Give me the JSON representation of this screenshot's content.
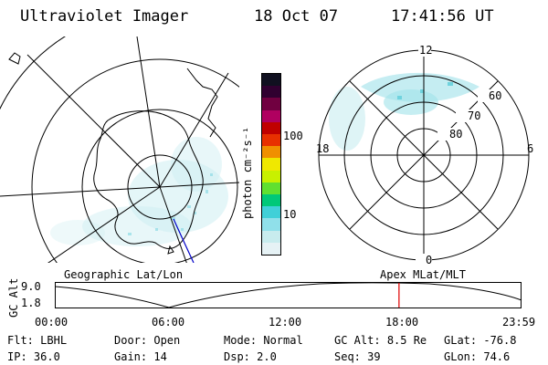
{
  "header": {
    "instrument": "Ultraviolet Imager",
    "date": "18 Oct 07",
    "time": "17:41:56 UT"
  },
  "colorbar": {
    "unit_label": "photon cm⁻²s⁻¹",
    "ticks": [
      "100",
      "10"
    ],
    "colors": [
      "#e6f2f5",
      "#c8ecee",
      "#90e0ea",
      "#40d0d8",
      "#00c878",
      "#60e030",
      "#c8f000",
      "#f0e800",
      "#f09000",
      "#e83000",
      "#c00000",
      "#b00060",
      "#700040",
      "#300030",
      "#101020"
    ]
  },
  "geo_panel": {
    "caption": "Geographic Lat/Lon"
  },
  "mag_panel": {
    "caption": "Apex MLat/MLT",
    "mlt_labels": {
      "top": "12",
      "bottom": "0",
      "left": "18",
      "right": "6"
    },
    "lat_labels": [
      "60",
      "70",
      "80"
    ]
  },
  "altitude_plot": {
    "ylabel": "GC Alt",
    "y_ticks": [
      "9.0",
      "1.8"
    ],
    "x_ticks": [
      "00:00",
      "06:00",
      "12:00",
      "18:00",
      "23:59"
    ],
    "current_time_hours": 17.7
  },
  "status": {
    "flt_label": "Flt:",
    "flt_value": "LBHL",
    "door_label": "Door:",
    "door_value": "Open",
    "mode_label": "Mode:",
    "mode_value": "Normal",
    "gcalt_label": "GC Alt:",
    "gcalt_value": "8.5 Re",
    "glat_label": "GLat:",
    "glat_value": "-76.8",
    "ip_label": "IP:",
    "ip_value": "36.0",
    "gain_label": "Gain:",
    "gain_value": "14",
    "dsp_label": "Dsp:",
    "dsp_value": "2.0",
    "seq_label": "Seq:",
    "seq_value": "39",
    "glon_label": "GLon:",
    "glon_value": "74.6"
  }
}
